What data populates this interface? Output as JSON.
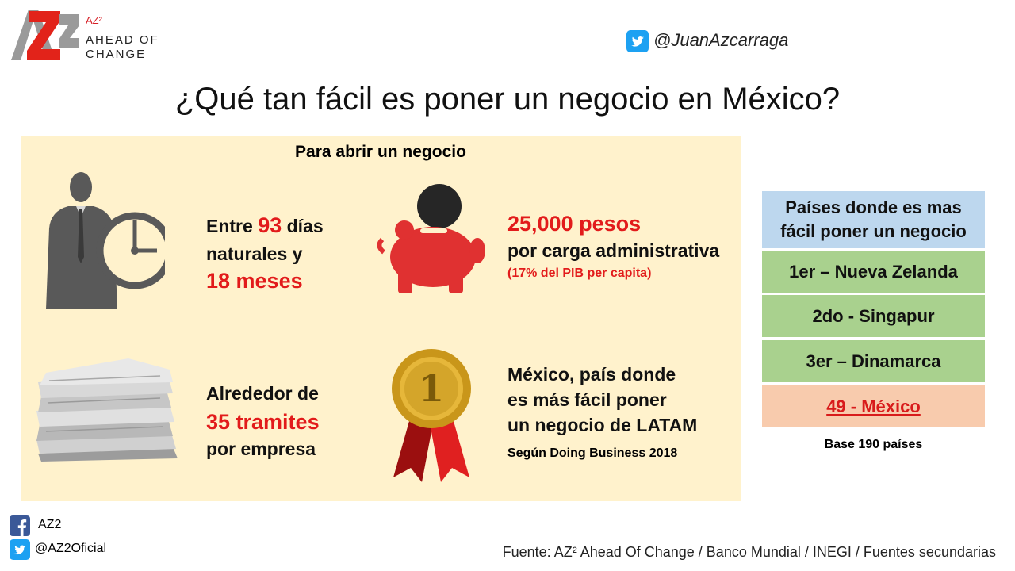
{
  "logo": {
    "mark": "AZ2",
    "superscript": "AZ²",
    "line1": "AHEAD OF",
    "line2": "CHANGE"
  },
  "twitter_top": {
    "handle": "@JuanAzcarraga",
    "icon": "twitter-icon"
  },
  "title": "¿Qué tan fácil es poner un negocio en México?",
  "panel": {
    "heading": "Para abrir un negocio",
    "time": {
      "prefix": "Entre ",
      "days": "93",
      "suffix": " días",
      "line2": "naturales y",
      "months": "18 meses"
    },
    "cost": {
      "amount": "25,000 pesos",
      "line2": "por carga administrativa",
      "note": "(17% del PIB per capita)"
    },
    "steps": {
      "line1": "Alrededor de",
      "count": "35 tramites",
      "line3": "por empresa"
    },
    "rank": {
      "line1": "México, país donde",
      "line2": "es más fácil poner",
      "line3": "un negocio de LATAM",
      "source": "Según Doing Business 2018",
      "medal_number": "1"
    }
  },
  "ranking": {
    "header_line1": "Países donde es mas",
    "header_line2": "fácil poner un negocio",
    "rows": [
      "1er – Nueva Zelanda",
      "2do - Singapur",
      "3er – Dinamarca"
    ],
    "mexico": "49 - México",
    "base": "Base 190 países",
    "colors": {
      "header": "#bdd7ee",
      "rows": "#a9d18e",
      "mexico": "#f8cbad"
    }
  },
  "social": {
    "facebook": "AZ2",
    "twitter": "@AZ2Oficial"
  },
  "source": "Fuente: AZ² Ahead Of Change / Banco Mundial / INEGI / Fuentes secundarias"
}
